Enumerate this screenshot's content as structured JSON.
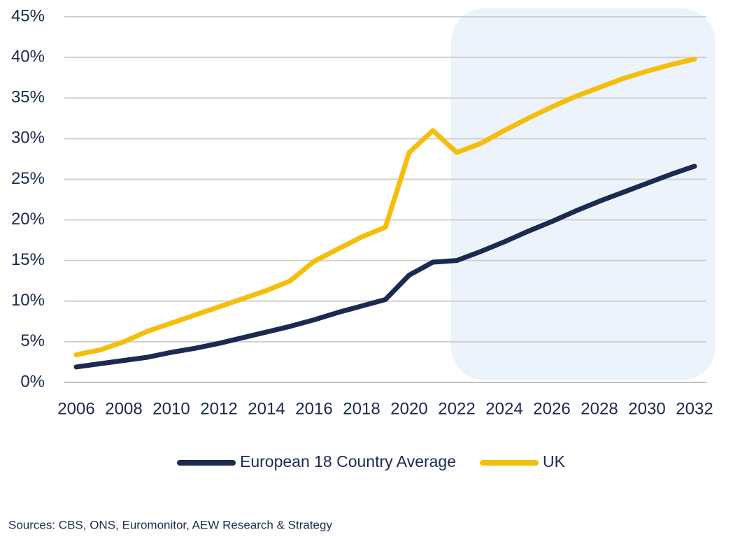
{
  "chart_data": {
    "type": "line",
    "x": [
      2006,
      2007,
      2008,
      2009,
      2010,
      2011,
      2012,
      2013,
      2014,
      2015,
      2016,
      2017,
      2018,
      2019,
      2020,
      2021,
      2022,
      2023,
      2024,
      2025,
      2026,
      2027,
      2028,
      2029,
      2030,
      2031,
      2032
    ],
    "series": [
      {
        "name": "European 18 Country Average",
        "color": "#1c2951",
        "values": [
          1.9,
          2.3,
          2.7,
          3.1,
          3.7,
          4.2,
          4.8,
          5.5,
          6.2,
          6.9,
          7.7,
          8.6,
          9.4,
          10.2,
          13.2,
          14.8,
          15.0,
          16.1,
          17.3,
          18.6,
          19.8,
          21.1,
          22.3,
          23.4,
          24.5,
          25.6,
          26.6
        ]
      },
      {
        "name": "UK",
        "color": "#f5be0b",
        "values": [
          3.4,
          4.0,
          5.0,
          6.3,
          7.3,
          8.3,
          9.3,
          10.3,
          11.3,
          12.5,
          14.9,
          16.4,
          17.9,
          19.1,
          28.3,
          31.0,
          28.3,
          29.4,
          31.0,
          32.5,
          33.9,
          35.2,
          36.3,
          37.4,
          38.3,
          39.1,
          39.8
        ]
      }
    ],
    "xlim": [
      2005.5,
      2032.5
    ],
    "xticks": [
      2006,
      2008,
      2010,
      2012,
      2014,
      2016,
      2018,
      2020,
      2022,
      2024,
      2026,
      2028,
      2030,
      2032
    ],
    "ylim": [
      0,
      45
    ],
    "yticks": [
      {
        "value": 0,
        "label": "0%"
      },
      {
        "value": 5,
        "label": "5%"
      },
      {
        "value": 10,
        "label": "10%"
      },
      {
        "value": 15,
        "label": "15%"
      },
      {
        "value": 20,
        "label": "20%"
      },
      {
        "value": 25,
        "label": "25%"
      },
      {
        "value": 30,
        "label": "30%"
      },
      {
        "value": 35,
        "label": "35%"
      },
      {
        "value": 40,
        "label": "40%"
      },
      {
        "value": 45,
        "label": "45%"
      }
    ],
    "grid": true,
    "legend": "bottom",
    "source": "Sources: CBS, ONS, Euromonitor, AEW Research & Strategy"
  }
}
